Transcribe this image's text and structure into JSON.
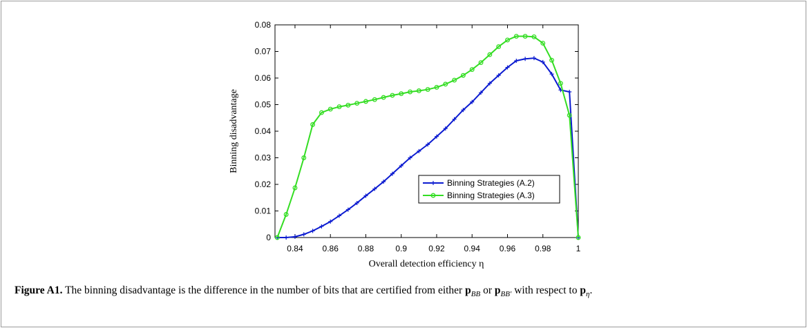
{
  "chart_data": {
    "type": "line",
    "xlabel": "Overall detection efficiency η",
    "ylabel": "Binning disadvantage",
    "x": [
      0.83,
      0.835,
      0.84,
      0.845,
      0.85,
      0.855,
      0.86,
      0.865,
      0.87,
      0.875,
      0.88,
      0.885,
      0.89,
      0.895,
      0.9,
      0.905,
      0.91,
      0.915,
      0.92,
      0.925,
      0.93,
      0.935,
      0.94,
      0.945,
      0.95,
      0.955,
      0.96,
      0.965,
      0.97,
      0.975,
      0.98,
      0.985,
      0.99,
      0.995,
      1
    ],
    "series": [
      {
        "name": "Binning Strategies (A.2)",
        "color": "#0a1ad0",
        "marker": "plus",
        "values": [
          0,
          0,
          0.0003,
          0.0012,
          0.0025,
          0.0042,
          0.006,
          0.0082,
          0.0105,
          0.013,
          0.0157,
          0.0183,
          0.021,
          0.024,
          0.027,
          0.03,
          0.0325,
          0.035,
          0.038,
          0.041,
          0.0445,
          0.048,
          0.051,
          0.0545,
          0.058,
          0.061,
          0.064,
          0.0665,
          0.0672,
          0.0675,
          0.066,
          0.0615,
          0.0555,
          0.0548,
          0
        ]
      },
      {
        "name": "Binning Strategies (A.3)",
        "color": "#33dd22",
        "marker": "circle",
        "values": [
          0,
          0.0087,
          0.0187,
          0.03,
          0.0425,
          0.047,
          0.0483,
          0.0492,
          0.0498,
          0.0505,
          0.0512,
          0.0519,
          0.0527,
          0.0535,
          0.0541,
          0.0548,
          0.0552,
          0.0557,
          0.0565,
          0.0577,
          0.0592,
          0.061,
          0.0632,
          0.0658,
          0.0688,
          0.0718,
          0.0743,
          0.0757,
          0.0757,
          0.0755,
          0.0731,
          0.0667,
          0.058,
          0.046,
          0
        ]
      }
    ],
    "xlim": [
      0.8287,
      1
    ],
    "ylim": [
      0,
      0.08
    ],
    "xticks": [
      0.84,
      0.86,
      0.88,
      0.9,
      0.92,
      0.94,
      0.96,
      0.98,
      1
    ],
    "yticks": [
      0,
      0.01,
      0.02,
      0.03,
      0.04,
      0.05,
      0.06,
      0.07,
      0.08
    ],
    "legend": "lower right"
  },
  "caption": {
    "label": "Figure A1.",
    "parts": [
      {
        "text": " The binning disadvantage is the difference in the number of bits that are certified from either "
      },
      {
        "text": "p",
        "style": "bold"
      },
      {
        "text": "BB",
        "style": "sub"
      },
      {
        "text": " or "
      },
      {
        "text": "p",
        "style": "bold"
      },
      {
        "text": "BB′",
        "style": "sub"
      },
      {
        "text": " with respect to "
      },
      {
        "text": "p",
        "style": "bold"
      },
      {
        "text": "η",
        "style": "sub"
      },
      {
        "text": "."
      }
    ]
  }
}
